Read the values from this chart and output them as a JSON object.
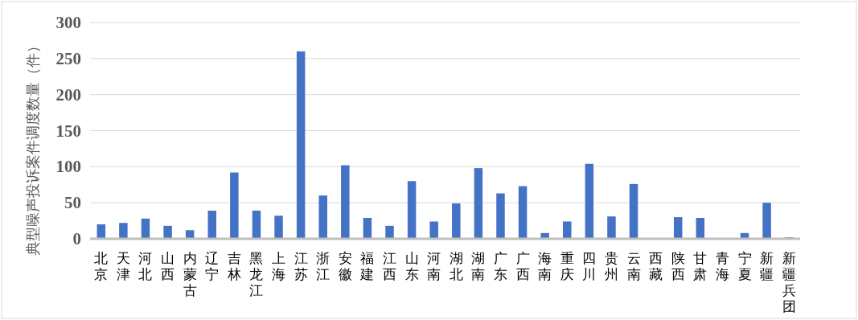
{
  "chart_data": {
    "type": "bar",
    "ylabel": "典型噪声投诉案件调度数量（件）",
    "categories": [
      "北京",
      "天津",
      "河北",
      "山西",
      "内蒙古",
      "辽宁",
      "吉林",
      "黑龙江",
      "上海",
      "江苏",
      "浙江",
      "安徽",
      "福建",
      "江西",
      "山东",
      "河南",
      "湖北",
      "湖南",
      "广东",
      "广西",
      "海南",
      "重庆",
      "四川",
      "贵州",
      "云南",
      "西藏",
      "陕西",
      "甘肃",
      "青海",
      "宁夏",
      "新疆",
      "新疆兵团"
    ],
    "values": [
      20,
      22,
      28,
      18,
      12,
      39,
      92,
      39,
      32,
      260,
      60,
      102,
      29,
      18,
      80,
      24,
      49,
      98,
      63,
      73,
      8,
      24,
      104,
      31,
      76,
      0,
      30,
      29,
      0,
      8,
      50,
      2
    ],
    "color": "#4472c4",
    "ylim": [
      0,
      300
    ],
    "yticks": [
      0,
      50,
      100,
      150,
      200,
      250,
      300
    ],
    "grid": "y"
  }
}
